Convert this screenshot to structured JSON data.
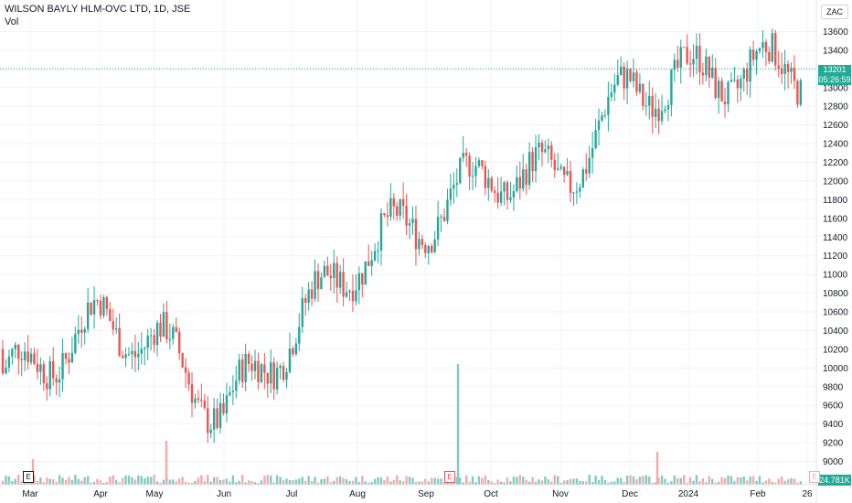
{
  "header": {
    "symbol_title": "WILSON BAYLY HLM-OVC LTD, 1D, JSE",
    "volume_label": "Vol"
  },
  "currency_label": "ZAC",
  "last_price": {
    "value": "13201",
    "countdown": "05:26:59"
  },
  "volume_last": "24.781K",
  "earnings_markers": [
    "E",
    "E",
    "E"
  ],
  "colors": {
    "up": "#26a69a",
    "down": "#ef5350",
    "vol_up": "#80cbc4",
    "vol_down": "#f7a9a7",
    "price_tag": "#22ab94",
    "grid": "#f0f3fa"
  },
  "chart_data": {
    "type": "candlestick",
    "title": "WILSON BAYLY HLM-OVC LTD, 1D, JSE",
    "ylim": [
      8800,
      13800
    ],
    "y_ticks": [
      9000,
      9200,
      9400,
      9600,
      9800,
      10000,
      10200,
      10400,
      10600,
      10800,
      11000,
      11200,
      11400,
      11600,
      11800,
      12000,
      12200,
      12400,
      12600,
      12800,
      13000,
      13200,
      13400,
      13600
    ],
    "x_ticks": [
      "Mar",
      "Apr",
      "May",
      "Jun",
      "Jul",
      "Aug",
      "Sep",
      "Oct",
      "Nov",
      "Dec",
      "2024",
      "Feb",
      "26"
    ],
    "approx_closes_by_month": [
      {
        "month": "Mar",
        "close": 10000
      },
      {
        "month": "Apr",
        "close": 10500
      },
      {
        "month": "May",
        "close": 10300
      },
      {
        "month": "Jun",
        "close": 9500
      },
      {
        "month": "Jul",
        "close": 10400
      },
      {
        "month": "Aug",
        "close": 11200
      },
      {
        "month": "Sep",
        "close": 11600
      },
      {
        "month": "Oct",
        "close": 12100
      },
      {
        "month": "Nov",
        "close": 12000
      },
      {
        "month": "Dec",
        "close": 13000
      },
      {
        "month": "2024",
        "close": 13100
      },
      {
        "month": "Feb",
        "close": 13200
      }
    ],
    "last_close": 13201,
    "volume_spikes": [
      {
        "near": "Mar",
        "direction": "down"
      },
      {
        "near": "May",
        "direction": "down"
      },
      {
        "near": "Sep",
        "direction": "up"
      },
      {
        "near": "Dec",
        "direction": "down"
      }
    ]
  }
}
